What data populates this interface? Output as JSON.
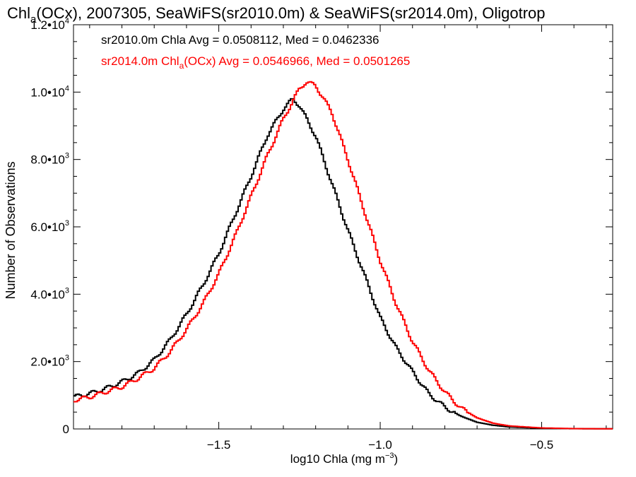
{
  "chart_data": {
    "type": "line",
    "title_parts": {
      "t1": "Chl",
      "t1_sub": "a",
      "t2": "(OCx), 2007305, SeaWiFS(sr2010.0m) & SeaWiFS(sr2014.0m), Oligotrop"
    },
    "xlabel_parts": {
      "main": "log10 Chla (mg m",
      "sup": "−3",
      "close": ")"
    },
    "ylabel": "Number of Observations",
    "xlim": [
      -1.95,
      -0.28
    ],
    "ylim": [
      0,
      12000
    ],
    "x_ticks": [
      {
        "value": -1.5,
        "label": "−1.5"
      },
      {
        "value": -1.0,
        "label": "−1.0"
      },
      {
        "value": -0.5,
        "label": "−0.5"
      }
    ],
    "y_ticks": [
      {
        "value": 0,
        "mant": "0",
        "exp": ""
      },
      {
        "value": 2000,
        "mant": "2.0•10",
        "exp": "3"
      },
      {
        "value": 4000,
        "mant": "4.0•10",
        "exp": "3"
      },
      {
        "value": 6000,
        "mant": "6.0•10",
        "exp": "3"
      },
      {
        "value": 8000,
        "mant": "8.0•10",
        "exp": "3"
      },
      {
        "value": 10000,
        "mant": "1.0•10",
        "exp": "4"
      },
      {
        "value": 12000,
        "mant": "1.2•10",
        "exp": "4"
      }
    ],
    "annotations": {
      "line1": "sr2010.0m Chla Avg = 0.0508112, Med = 0.0462336",
      "line2_a": "sr2014.0m Chl",
      "line2_sub": "a",
      "line2_b": "(OCx) Avg = 0.0546966, Med = 0.0501265"
    },
    "series": [
      {
        "color": "#000000",
        "x": [
          -1.95,
          -1.9,
          -1.85,
          -1.8,
          -1.75,
          -1.7,
          -1.65,
          -1.6,
          -1.55,
          -1.5,
          -1.45,
          -1.4,
          -1.35,
          -1.3,
          -1.27,
          -1.25,
          -1.2,
          -1.15,
          -1.1,
          -1.05,
          -1.0,
          -0.95,
          -0.9,
          -0.85,
          -0.8,
          -0.75,
          -0.7,
          -0.65,
          -0.6,
          -0.5,
          -0.4,
          -0.28
        ],
        "y": [
          950,
          1050,
          1200,
          1400,
          1650,
          2050,
          2650,
          3400,
          4250,
          5200,
          6350,
          7500,
          8700,
          9500,
          9800,
          9600,
          8700,
          7300,
          5900,
          4600,
          3300,
          2400,
          1700,
          1050,
          650,
          380,
          200,
          110,
          60,
          20,
          8,
          5
        ]
      },
      {
        "color": "#ff0000",
        "x": [
          -1.95,
          -1.9,
          -1.85,
          -1.8,
          -1.75,
          -1.7,
          -1.65,
          -1.6,
          -1.55,
          -1.5,
          -1.45,
          -1.4,
          -1.35,
          -1.3,
          -1.25,
          -1.23,
          -1.2,
          -1.15,
          -1.1,
          -1.05,
          -1.0,
          -0.95,
          -0.9,
          -0.85,
          -0.8,
          -0.75,
          -0.7,
          -0.65,
          -0.6,
          -0.5,
          -0.4,
          -0.28
        ],
        "y": [
          850,
          950,
          1100,
          1250,
          1500,
          1800,
          2300,
          2950,
          3700,
          4600,
          5700,
          6900,
          8100,
          9200,
          10100,
          10300,
          10200,
          9400,
          8000,
          6500,
          5000,
          3700,
          2600,
          1750,
          1100,
          620,
          330,
          170,
          90,
          30,
          10,
          5
        ]
      }
    ],
    "colors": {
      "axis": "#000000",
      "series1": "#000000",
      "series2": "#ff0000"
    }
  }
}
